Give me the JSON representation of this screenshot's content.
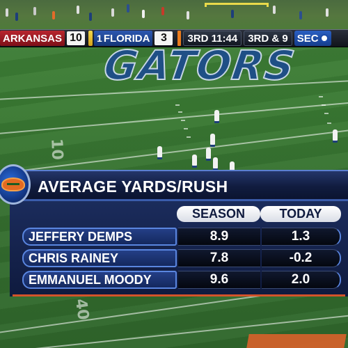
{
  "scorebug": {
    "away_team": "ARKANSAS",
    "away_score": "10",
    "home_rank": "1",
    "home_team": "FLORIDA",
    "home_score": "3",
    "clock": "3RD 11:44",
    "down_distance": "3RD & 9",
    "network": "SEC",
    "colors": {
      "away": "#b8262f",
      "home": "#2d57b0",
      "accent": "#ea7b1d"
    }
  },
  "field": {
    "endzone_text": "GATORS",
    "yard_markers": [
      "10",
      "40"
    ]
  },
  "stats": {
    "logo_icon": "gator-logo-icon",
    "title": "AVERAGE YARDS/RUSH",
    "columns": [
      "SEASON",
      "TODAY"
    ],
    "rows": [
      {
        "name": "JEFFERY DEMPS",
        "season": "8.9",
        "today": "1.3"
      },
      {
        "name": "CHRIS RAINEY",
        "season": "7.8",
        "today": "-0.2"
      },
      {
        "name": "EMMANUEL MOODY",
        "season": "9.6",
        "today": "2.0"
      }
    ]
  }
}
